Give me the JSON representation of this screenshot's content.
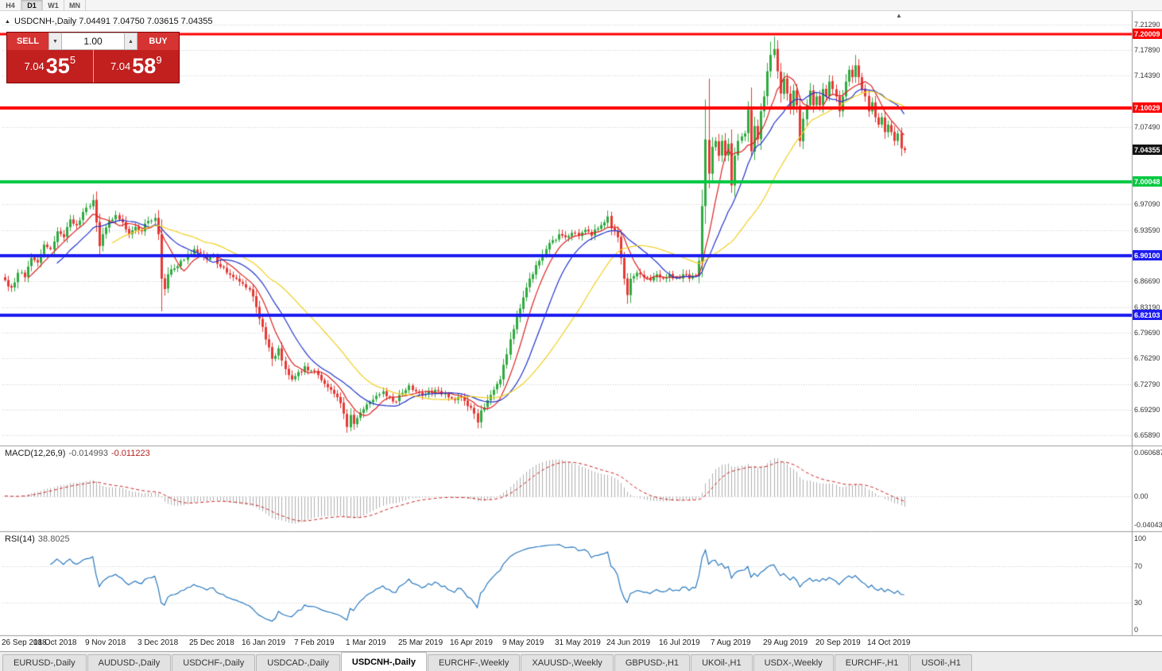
{
  "toolbar": {
    "timeframes": [
      "H4",
      "D1",
      "W1",
      "MN"
    ],
    "active": "D1"
  },
  "icons": {
    "title_marker": "▲",
    "volume_down": "▼",
    "volume_up": "▲",
    "shift_marker": "▲"
  },
  "chart": {
    "title": "USDCNH-,Daily 7.04491 7.04750 7.03615 7.04355",
    "symbol": "USDCNH-",
    "period": "Daily"
  },
  "trade": {
    "sell_label": "SELL",
    "buy_label": "BUY",
    "volume": "1.00",
    "sell_price": {
      "prefix": "7.04",
      "big": "35",
      "sup": "5"
    },
    "buy_price": {
      "prefix": "7.04",
      "big": "58",
      "sup": "9"
    }
  },
  "price_scale": {
    "badges": [
      {
        "text": "7.20009",
        "bg": "#ff0000"
      },
      {
        "text": "7.10029",
        "bg": "#ff0000"
      },
      {
        "text": "7.04355",
        "bg": "#141414"
      },
      {
        "text": "7.00048",
        "bg": "#00c840"
      },
      {
        "text": "6.90100",
        "bg": "#1c1cf0"
      },
      {
        "text": "6.82103",
        "bg": "#1c1cf0"
      }
    ]
  },
  "date_axis": {
    "labels": [
      "26 Sep 2018",
      "18 Oct 2018",
      "9 Nov 2018",
      "3 Dec 2018",
      "25 Dec 2018",
      "16 Jan 2019",
      "7 Feb 2019",
      "1 Mar 2019",
      "25 Mar 2019",
      "16 Apr 2019",
      "9 May 2019",
      "31 May 2019",
      "24 Jun 2019",
      "16 Jul 2019",
      "7 Aug 2019",
      "29 Aug 2019",
      "20 Sep 2019",
      "14 Oct 2019"
    ]
  },
  "tab_bar": {
    "active_index": 4,
    "tabs": [
      "EURUSD-,Daily",
      "AUDUSD-,Daily",
      "USDCHF-,Daily",
      "USDCAD-,Daily",
      "USDCNH-,Daily",
      "EURCHF-,Weekly",
      "XAUUSD-,Weekly",
      "GBPUSD-,H1",
      "UKOil-,H1",
      "USDX-,Weekly",
      "EURCHF-,H1",
      "USOil-,H1"
    ]
  },
  "theme": {
    "background": "#ffffff",
    "grid": "#c8c8c8",
    "candle_up": "#2faa3f",
    "candle_down": "#e53935",
    "macd_histogram": "#b0b0b0",
    "macd_signal": "#cc2222",
    "rsi_line": "#2878be",
    "separator": "#9a9a9a"
  },
  "chart_data": {
    "type": "candlestick",
    "symbol": "USDCNH",
    "timeframe": "Daily",
    "ohlc_current": {
      "open": 7.04491,
      "high": 7.0475,
      "low": 7.03615,
      "close": 7.04355
    },
    "bid": 7.04355,
    "ask": 7.04589,
    "num_candles": 277,
    "candles_per_label": 16,
    "price_axis": {
      "min": 6.646,
      "max": 7.2226,
      "tick_labels": [
        "7.21290",
        "7.17890",
        "7.14390",
        "7.07490",
        "6.97090",
        "6.93590",
        "6.86690",
        "6.83190",
        "6.79690",
        "6.76290",
        "6.72790",
        "6.69290",
        "6.65890"
      ]
    },
    "levels": [
      {
        "price": 7.20009,
        "color": "#ff0000",
        "thickness": 3
      },
      {
        "price": 7.10029,
        "color": "#ff0000",
        "thickness": 4
      },
      {
        "price": 7.00048,
        "color": "#00c840",
        "thickness": 4
      },
      {
        "price": 6.901,
        "color": "#1c1cf0",
        "thickness": 4
      },
      {
        "price": 6.82103,
        "color": "#1c1cf0",
        "thickness": 4
      }
    ],
    "moving_averages": [
      {
        "name": "ma-fast",
        "period": 8,
        "color": "#dd2222"
      },
      {
        "name": "ma-mid",
        "period": 17,
        "color": "#2233cc"
      },
      {
        "name": "ma-slow",
        "period": 34,
        "color": "#f0d020"
      }
    ],
    "close_anchors": [
      [
        0,
        6.868
      ],
      [
        2,
        6.858
      ],
      [
        4,
        6.878
      ],
      [
        6,
        6.872
      ],
      [
        8,
        6.898
      ],
      [
        10,
        6.892
      ],
      [
        12,
        6.916
      ],
      [
        14,
        6.91
      ],
      [
        16,
        6.934
      ],
      [
        18,
        6.926
      ],
      [
        20,
        6.95
      ],
      [
        22,
        6.942
      ],
      [
        24,
        6.96
      ],
      [
        26,
        6.968
      ],
      [
        27,
        6.976
      ],
      [
        28,
        6.946
      ],
      [
        29,
        6.914
      ],
      [
        30,
        6.93
      ],
      [
        32,
        6.948
      ],
      [
        34,
        6.956
      ],
      [
        36,
        6.946
      ],
      [
        38,
        6.93
      ],
      [
        40,
        6.94
      ],
      [
        42,
        6.934
      ],
      [
        44,
        6.948
      ],
      [
        46,
        6.952
      ],
      [
        47,
        6.93
      ],
      [
        48,
        6.87
      ],
      [
        49,
        6.856
      ],
      [
        50,
        6.876
      ],
      [
        52,
        6.884
      ],
      [
        54,
        6.894
      ],
      [
        56,
        6.902
      ],
      [
        58,
        6.91
      ],
      [
        60,
        6.904
      ],
      [
        62,
        6.896
      ],
      [
        64,
        6.9
      ],
      [
        66,
        6.886
      ],
      [
        68,
        6.878
      ],
      [
        70,
        6.872
      ],
      [
        72,
        6.866
      ],
      [
        74,
        6.858
      ],
      [
        76,
        6.846
      ],
      [
        78,
        6.816
      ],
      [
        80,
        6.788
      ],
      [
        82,
        6.762
      ],
      [
        84,
        6.776
      ],
      [
        86,
        6.748
      ],
      [
        88,
        6.734
      ],
      [
        90,
        6.744
      ],
      [
        92,
        6.752
      ],
      [
        94,
        6.746
      ],
      [
        96,
        6.74
      ],
      [
        98,
        6.728
      ],
      [
        100,
        6.72
      ],
      [
        102,
        6.71
      ],
      [
        104,
        6.688
      ],
      [
        105,
        6.67
      ],
      [
        106,
        6.686
      ],
      [
        107,
        6.674
      ],
      [
        108,
        6.682
      ],
      [
        110,
        6.694
      ],
      [
        112,
        6.704
      ],
      [
        114,
        6.712
      ],
      [
        116,
        6.718
      ],
      [
        118,
        6.71
      ],
      [
        120,
        6.704
      ],
      [
        122,
        6.716
      ],
      [
        124,
        6.726
      ],
      [
        126,
        6.718
      ],
      [
        128,
        6.712
      ],
      [
        130,
        6.718
      ],
      [
        132,
        6.72
      ],
      [
        134,
        6.714
      ],
      [
        136,
        6.71
      ],
      [
        138,
        6.706
      ],
      [
        140,
        6.71
      ],
      [
        142,
        6.698
      ],
      [
        144,
        6.688
      ],
      [
        145,
        6.676
      ],
      [
        146,
        6.692
      ],
      [
        148,
        6.706
      ],
      [
        150,
        6.72
      ],
      [
        152,
        6.734
      ],
      [
        154,
        6.768
      ],
      [
        156,
        6.802
      ],
      [
        158,
        6.83
      ],
      [
        160,
        6.858
      ],
      [
        162,
        6.876
      ],
      [
        164,
        6.894
      ],
      [
        166,
        6.91
      ],
      [
        168,
        6.922
      ],
      [
        170,
        6.93
      ],
      [
        172,
        6.926
      ],
      [
        174,
        6.932
      ],
      [
        176,
        6.928
      ],
      [
        178,
        6.936
      ],
      [
        180,
        6.928
      ],
      [
        182,
        6.938
      ],
      [
        184,
        6.946
      ],
      [
        185,
        6.954
      ],
      [
        186,
        6.938
      ],
      [
        188,
        6.926
      ],
      [
        189,
        6.898
      ],
      [
        190,
        6.87
      ],
      [
        191,
        6.848
      ],
      [
        192,
        6.87
      ],
      [
        194,
        6.878
      ],
      [
        196,
        6.872
      ],
      [
        198,
        6.868
      ],
      [
        200,
        6.876
      ],
      [
        202,
        6.87
      ],
      [
        204,
        6.876
      ],
      [
        206,
        6.872
      ],
      [
        208,
        6.876
      ],
      [
        210,
        6.87
      ],
      [
        212,
        6.874
      ],
      [
        213,
        6.894
      ],
      [
        214,
        6.968
      ],
      [
        215,
        7.058
      ],
      [
        216,
        7.012
      ],
      [
        217,
        7.048
      ],
      [
        218,
        7.056
      ],
      [
        219,
        7.036
      ],
      [
        220,
        7.056
      ],
      [
        221,
        7.036
      ],
      [
        222,
        7.052
      ],
      [
        223,
        6.996
      ],
      [
        224,
        7.036
      ],
      [
        225,
        7.056
      ],
      [
        226,
        7.062
      ],
      [
        227,
        7.066
      ],
      [
        228,
        7.098
      ],
      [
        229,
        7.042
      ],
      [
        230,
        7.076
      ],
      [
        231,
        7.058
      ],
      [
        232,
        7.096
      ],
      [
        233,
        7.116
      ],
      [
        234,
        7.15
      ],
      [
        235,
        7.172
      ],
      [
        236,
        7.18
      ],
      [
        237,
        7.15
      ],
      [
        238,
        7.12
      ],
      [
        239,
        7.14
      ],
      [
        240,
        7.12
      ],
      [
        241,
        7.1
      ],
      [
        242,
        7.124
      ],
      [
        243,
        7.104
      ],
      [
        244,
        7.056
      ],
      [
        245,
        7.086
      ],
      [
        246,
        7.104
      ],
      [
        247,
        7.124
      ],
      [
        248,
        7.104
      ],
      [
        249,
        7.116
      ],
      [
        250,
        7.104
      ],
      [
        251,
        7.126
      ],
      [
        252,
        7.116
      ],
      [
        253,
        7.136
      ],
      [
        254,
        7.126
      ],
      [
        255,
        7.116
      ],
      [
        256,
        7.096
      ],
      [
        257,
        7.116
      ],
      [
        258,
        7.136
      ],
      [
        259,
        7.152
      ],
      [
        260,
        7.142
      ],
      [
        261,
        7.158
      ],
      [
        262,
        7.142
      ],
      [
        263,
        7.126
      ],
      [
        264,
        7.116
      ],
      [
        265,
        7.096
      ],
      [
        266,
        7.108
      ],
      [
        267,
        7.088
      ],
      [
        268,
        7.078
      ],
      [
        269,
        7.088
      ],
      [
        270,
        7.068
      ],
      [
        271,
        7.078
      ],
      [
        272,
        7.068
      ],
      [
        273,
        7.056
      ],
      [
        274,
        7.066
      ],
      [
        275,
        7.046
      ],
      [
        276,
        7.0435
      ]
    ],
    "high_overrides": {
      "27": 6.984,
      "185": 6.962,
      "215": 7.112,
      "216": 7.14,
      "229": 7.128,
      "235": 7.19,
      "236": 7.197,
      "261": 7.172
    },
    "low_overrides": {
      "48": 6.826,
      "82": 6.752,
      "105": 6.662,
      "145": 6.668,
      "191": 6.836,
      "216": 6.992,
      "223": 6.986,
      "229": 7.036,
      "244": 7.048
    },
    "indicators": {
      "macd": {
        "label": "MACD(12,26,9)",
        "value_main": "-0.014993",
        "value_signal": "-0.011223",
        "range": [
          -0.0482,
          0.0696
        ],
        "scale_labels": [
          "0.060687",
          "0.00",
          "-0.040432"
        ]
      },
      "rsi": {
        "label": "RSI(14)",
        "value_text": "38.8025",
        "value": 38.8025,
        "range": [
          -6,
          107
        ],
        "scale_labels": [
          "100",
          "70",
          "30",
          "0"
        ],
        "levels": [
          70,
          30
        ]
      }
    }
  }
}
